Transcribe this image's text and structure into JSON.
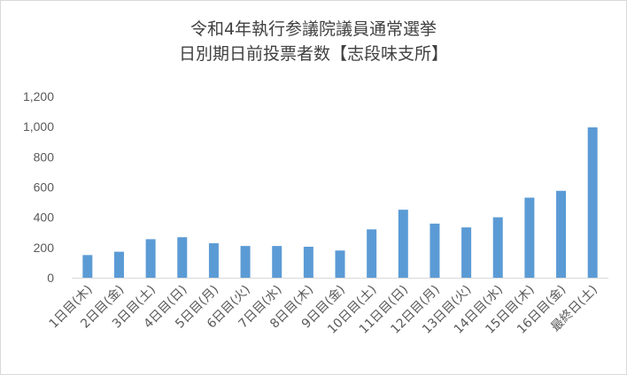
{
  "chart_data": {
    "type": "bar",
    "title_lines": [
      "令和4年執行参議院議員通常選挙",
      "日別期日前投票者数【志段味支所】"
    ],
    "categories": [
      "1日目(木)",
      "2日目(金)",
      "3日目(土)",
      "4日目(日)",
      "5日目(月)",
      "6日目(火)",
      "7日目(水)",
      "8日目(木)",
      "9日目(金)",
      "10日目(土)",
      "11日目(日)",
      "12日目(月)",
      "13日目(火)",
      "14日目(水)",
      "15日目(木)",
      "16日目(金)",
      "最終日(土)"
    ],
    "values": [
      150,
      172,
      255,
      268,
      228,
      210,
      210,
      205,
      180,
      320,
      450,
      358,
      333,
      400,
      530,
      575,
      995
    ],
    "ylim": [
      0,
      1200
    ],
    "yticks": [
      "0",
      "200",
      "400",
      "600",
      "800",
      "1,000",
      "1,200"
    ],
    "xlabel": "",
    "ylabel": "",
    "grid": false,
    "legend": "none",
    "colors": {
      "bar": "#5b9bd5",
      "axis": "#d9d9d9"
    }
  }
}
